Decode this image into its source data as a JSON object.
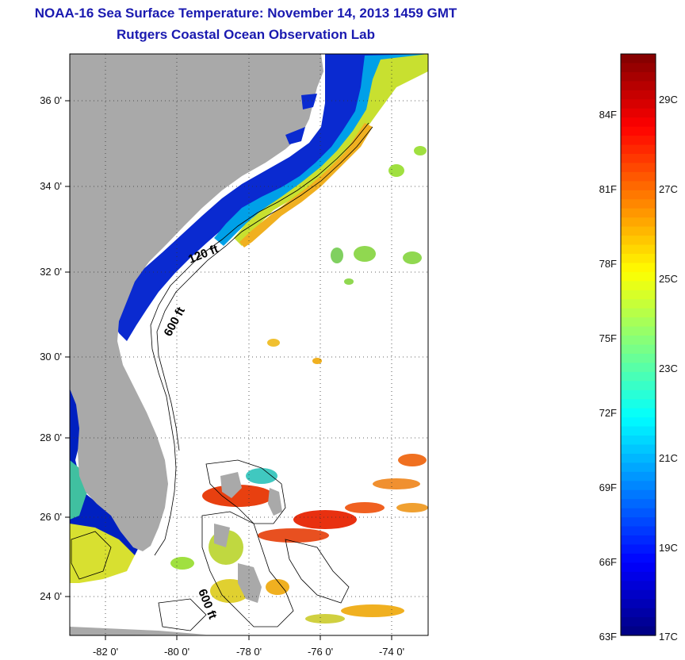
{
  "title": "NOAA-16 Sea Surface Temperature:  November 14, 2013 1459 GMT",
  "subtitle": "Rutgers Coastal Ocean Observation Lab",
  "map": {
    "lon_range": [
      -83,
      -73
    ],
    "lat_range": [
      23,
      37
    ],
    "lon_ticks": [
      "-82 0'",
      "-80 0'",
      "-78 0'",
      "-76 0'",
      "-74 0'"
    ],
    "lat_ticks": [
      "36 0'",
      "34 0'",
      "32 0'",
      "30 0'",
      "28 0'",
      "26 0'",
      "24 0'"
    ],
    "land_color": "#a9a9a9",
    "grid": true,
    "contour_labels": [
      "120 ft",
      "600 ft",
      "600 ft"
    ]
  },
  "colorbar": {
    "fahrenheit_labels": [
      "84F",
      "81F",
      "78F",
      "75F",
      "72F",
      "69F",
      "66F",
      "63F"
    ],
    "celsius_labels": [
      "29C",
      "27C",
      "25C",
      "23C",
      "21C",
      "19C",
      "17C"
    ],
    "range_c": [
      17,
      30
    ]
  }
}
